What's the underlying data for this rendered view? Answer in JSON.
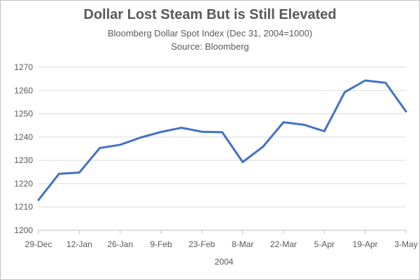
{
  "chart_data": {
    "type": "line",
    "title": "Dollar Lost Steam But is Still Elevated",
    "subtitle": "Bloomberg Dollar Spot Index (Dec 31, 2004=1000)",
    "source": "Source: Bloomberg",
    "xlabel": "2004",
    "ylabel": "",
    "ylim": [
      1200,
      1270
    ],
    "yticks": [
      1200,
      1210,
      1220,
      1230,
      1240,
      1250,
      1260,
      1270
    ],
    "grid": true,
    "legend": "none",
    "x_tick_labels": [
      "29-Dec",
      "12-Jan",
      "26-Jan",
      "9-Feb",
      "23-Feb",
      "8-Mar",
      "22-Mar",
      "5-Apr",
      "19-Apr",
      "3-May"
    ],
    "x": [
      "29-Dec",
      "5-Jan",
      "12-Jan",
      "19-Jan",
      "26-Jan",
      "2-Feb",
      "9-Feb",
      "16-Feb",
      "23-Feb",
      "1-Mar",
      "8-Mar",
      "15-Mar",
      "22-Mar",
      "29-Mar",
      "5-Apr",
      "12-Apr",
      "19-Apr",
      "26-Apr",
      "3-May"
    ],
    "series": [
      {
        "color": "#4472c4",
        "values": [
          1213,
          1224.2,
          1224.8,
          1235.3,
          1236.7,
          1239.8,
          1242.2,
          1244,
          1242.3,
          1242.1,
          1229.3,
          1235.9,
          1246.4,
          1245.3,
          1242.5,
          1259.3,
          1264.3,
          1263.3,
          1251
        ]
      }
    ]
  }
}
